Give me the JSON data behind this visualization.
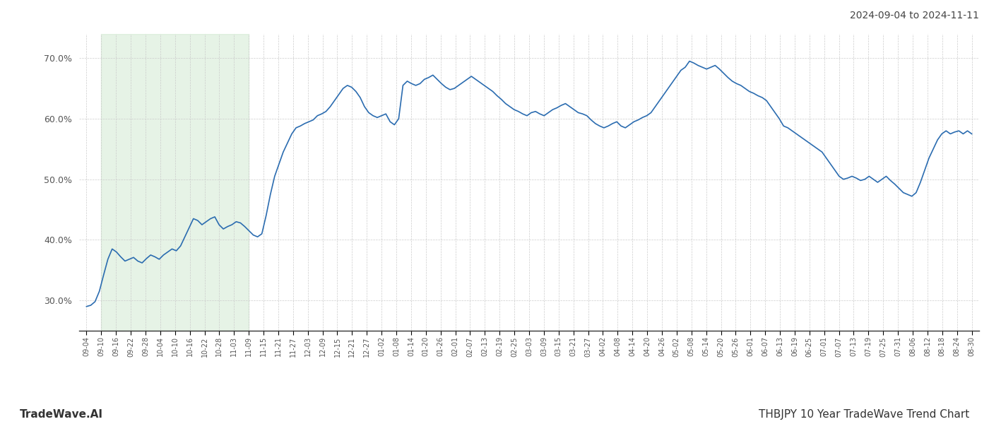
{
  "title_right": "2024-09-04 to 2024-11-11",
  "title_bottom_left": "TradeWave.AI",
  "title_bottom_right": "THBJPY 10 Year TradeWave Trend Chart",
  "background_color": "#ffffff",
  "line_color": "#2b6cb0",
  "line_width": 1.2,
  "shaded_region_color": "#c8e6c9",
  "shaded_region_alpha": 0.45,
  "shaded_start_label": "09-10",
  "shaded_end_label": "11-09",
  "ylim_min": 25.0,
  "ylim_max": 74.0,
  "yticks": [
    30.0,
    40.0,
    50.0,
    60.0,
    70.0
  ],
  "x_labels": [
    "09-04",
    "09-10",
    "09-16",
    "09-22",
    "09-28",
    "10-04",
    "10-10",
    "10-16",
    "10-22",
    "10-28",
    "11-03",
    "11-09",
    "11-15",
    "11-21",
    "11-27",
    "12-03",
    "12-09",
    "12-15",
    "12-21",
    "12-27",
    "01-02",
    "01-08",
    "01-14",
    "01-20",
    "01-26",
    "02-01",
    "02-07",
    "02-13",
    "02-19",
    "02-25",
    "03-03",
    "03-09",
    "03-15",
    "03-21",
    "03-27",
    "04-02",
    "04-08",
    "04-14",
    "04-20",
    "04-26",
    "05-02",
    "05-08",
    "05-14",
    "05-20",
    "05-26",
    "06-01",
    "06-07",
    "06-13",
    "06-19",
    "06-25",
    "07-01",
    "07-07",
    "07-13",
    "07-19",
    "07-25",
    "07-31",
    "08-06",
    "08-12",
    "08-18",
    "08-24",
    "08-30"
  ],
  "values": [
    29.0,
    29.2,
    29.8,
    31.5,
    34.2,
    36.8,
    38.5,
    38.0,
    37.2,
    36.5,
    36.8,
    37.1,
    36.5,
    36.2,
    36.9,
    37.5,
    37.2,
    36.8,
    37.5,
    38.0,
    38.5,
    38.2,
    39.0,
    40.5,
    42.0,
    43.5,
    43.2,
    42.5,
    43.0,
    43.5,
    43.8,
    42.5,
    41.8,
    42.2,
    42.5,
    43.0,
    42.8,
    42.2,
    41.5,
    40.8,
    40.5,
    41.0,
    44.0,
    47.5,
    50.5,
    52.5,
    54.5,
    56.0,
    57.5,
    58.5,
    58.8,
    59.2,
    59.5,
    59.8,
    60.5,
    60.8,
    61.2,
    62.0,
    63.0,
    64.0,
    65.0,
    65.5,
    65.2,
    64.5,
    63.5,
    62.0,
    61.0,
    60.5,
    60.2,
    60.5,
    60.8,
    59.5,
    59.0,
    60.0,
    65.5,
    66.2,
    65.8,
    65.5,
    65.8,
    66.5,
    66.8,
    67.2,
    66.5,
    65.8,
    65.2,
    64.8,
    65.0,
    65.5,
    66.0,
    66.5,
    67.0,
    66.5,
    66.0,
    65.5,
    65.0,
    64.5,
    63.8,
    63.2,
    62.5,
    62.0,
    61.5,
    61.2,
    60.8,
    60.5,
    61.0,
    61.2,
    60.8,
    60.5,
    61.0,
    61.5,
    61.8,
    62.2,
    62.5,
    62.0,
    61.5,
    61.0,
    60.8,
    60.5,
    59.8,
    59.2,
    58.8,
    58.5,
    58.8,
    59.2,
    59.5,
    58.8,
    58.5,
    59.0,
    59.5,
    59.8,
    60.2,
    60.5,
    61.0,
    62.0,
    63.0,
    64.0,
    65.0,
    66.0,
    67.0,
    68.0,
    68.5,
    69.5,
    69.2,
    68.8,
    68.5,
    68.2,
    68.5,
    68.8,
    68.2,
    67.5,
    66.8,
    66.2,
    65.8,
    65.5,
    65.0,
    64.5,
    64.2,
    63.8,
    63.5,
    63.0,
    62.0,
    61.0,
    60.0,
    58.8,
    58.5,
    58.0,
    57.5,
    57.0,
    56.5,
    56.0,
    55.5,
    55.0,
    54.5,
    53.5,
    52.5,
    51.5,
    50.5,
    50.0,
    50.2,
    50.5,
    50.2,
    49.8,
    50.0,
    50.5,
    50.0,
    49.5,
    50.0,
    50.5,
    49.8,
    49.2,
    48.5,
    47.8,
    47.5,
    47.2,
    47.8,
    49.5,
    51.5,
    53.5,
    55.0,
    56.5,
    57.5,
    58.0,
    57.5,
    57.8,
    58.0,
    57.5,
    58.0,
    57.5
  ],
  "grid_color": "#cccccc",
  "grid_linestyle": "--",
  "grid_linewidth": 0.5
}
